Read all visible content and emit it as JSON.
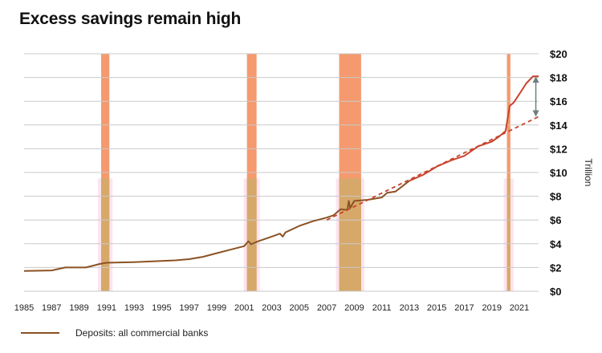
{
  "chart_data": {
    "type": "line",
    "title": "Excess savings remain high",
    "ylabel": "Trillion",
    "xlim": [
      1985,
      2022.4
    ],
    "ylim": [
      0,
      20
    ],
    "x_ticks": [
      1985,
      1987,
      1989,
      1991,
      1993,
      1995,
      1997,
      1999,
      2001,
      2003,
      2005,
      2007,
      2009,
      2011,
      2013,
      2015,
      2017,
      2019,
      2021
    ],
    "y_ticks": [
      "$0",
      "$2",
      "$4",
      "$6",
      "$8",
      "$10",
      "$12",
      "$14",
      "$16",
      "$18",
      "$20"
    ],
    "y_tick_values": [
      0,
      2,
      4,
      6,
      8,
      10,
      12,
      14,
      16,
      18,
      20
    ],
    "grid": "horizontal",
    "recessions": [
      [
        1990.6,
        1991.2
      ],
      [
        2001.2,
        2001.9
      ],
      [
        2007.9,
        2009.5
      ],
      [
        2020.1,
        2020.35
      ]
    ],
    "series": [
      {
        "name": "Deposits: all commercial banks",
        "color": "#8B5224",
        "x": [
          1985,
          1987,
          1988,
          1989.5,
          1990.5,
          1991,
          1993,
          1994,
          1995,
          1996,
          1997,
          1998,
          1999,
          2000,
          2001,
          2001.3,
          2001.5,
          2002,
          2003,
          2003.6,
          2003.8,
          2004,
          2005,
          2006,
          2007,
          2007.5,
          2008,
          2008.5,
          2008.6,
          2008.7,
          2009,
          2010,
          2011,
          2011.4,
          2012,
          2013
        ],
        "values": [
          1.7,
          1.75,
          2.0,
          2.0,
          2.3,
          2.4,
          2.45,
          2.5,
          2.55,
          2.6,
          2.7,
          2.9,
          3.2,
          3.5,
          3.8,
          4.2,
          3.95,
          4.2,
          4.6,
          4.85,
          4.6,
          4.95,
          5.5,
          5.9,
          6.2,
          6.4,
          6.9,
          6.85,
          7.6,
          7.0,
          7.6,
          7.7,
          7.9,
          8.3,
          8.4,
          9.3
        ]
      },
      {
        "color": "#C8442E",
        "x": [
          2013,
          2014,
          2015,
          2016,
          2017,
          2017.5,
          2018,
          2019,
          2019.5,
          2020,
          2020.3,
          2020.6,
          2021,
          2021.5,
          2022,
          2022.4
        ],
        "values": [
          9.3,
          9.8,
          10.5,
          11.0,
          11.4,
          11.8,
          12.2,
          12.6,
          13.0,
          13.5,
          15.6,
          15.9,
          16.6,
          17.5,
          18.1,
          18.1
        ]
      },
      {
        "color": "#C8442E",
        "dashed": true,
        "x": [
          2007,
          2022.4
        ],
        "values": [
          6.0,
          14.7
        ]
      }
    ],
    "gap_arrow": {
      "x": 2022.2,
      "from": 14.7,
      "to": 18.1
    }
  }
}
